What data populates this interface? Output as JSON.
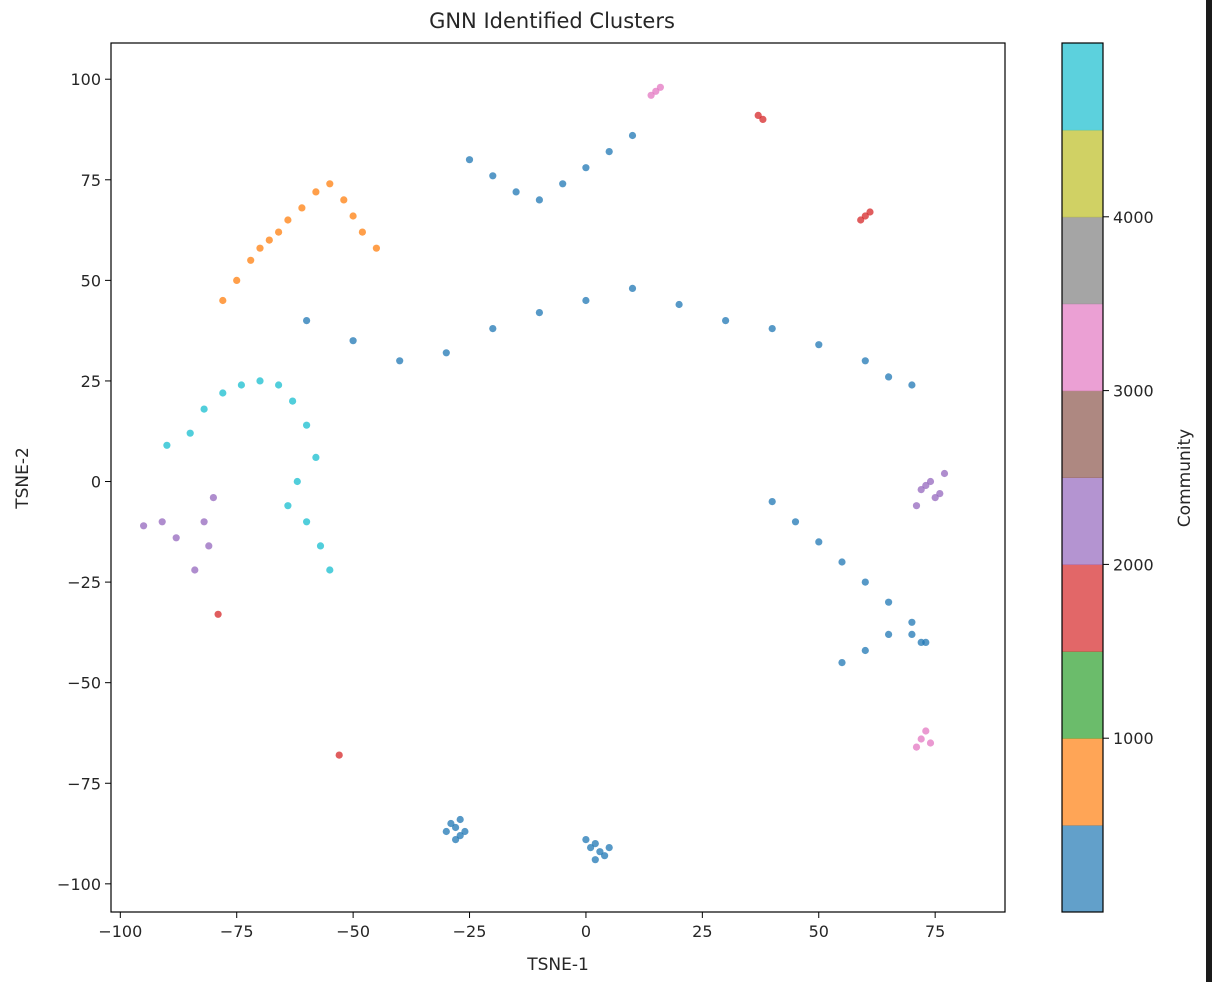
{
  "chart_data": {
    "type": "scatter",
    "title": "GNN Identified Clusters",
    "xlabel": "TSNE-1",
    "ylabel": "TSNE-2",
    "xlim": [
      -102,
      90
    ],
    "ylim": [
      -107,
      109
    ],
    "xticks": [
      -100,
      -75,
      -50,
      -25,
      0,
      25,
      50,
      75
    ],
    "yticks": [
      -100,
      -75,
      -50,
      -25,
      0,
      25,
      50,
      75,
      100
    ],
    "xtick_labels": [
      "−100",
      "−75",
      "−50",
      "−25",
      "0",
      "25",
      "50",
      "75"
    ],
    "ytick_labels": [
      "−100",
      "−75",
      "−50",
      "−25",
      "0",
      "25",
      "50",
      "75",
      "100"
    ],
    "grid": false,
    "colormap": "tab10",
    "colorbar": {
      "label": "Community",
      "range": [
        0,
        5000
      ],
      "ticks": [
        1000,
        2000,
        3000,
        4000
      ],
      "tick_labels": [
        "1000",
        "2000",
        "3000",
        "4000"
      ],
      "colors": [
        "#1f77b4",
        "#ff7f0e",
        "#2ca02c",
        "#d62728",
        "#9467bd",
        "#8c564b",
        "#e377c2",
        "#7f7f7f",
        "#bcbd22",
        "#17becf"
      ]
    },
    "palette": [
      "#1f77b4",
      "#ff7f0e",
      "#2ca02c",
      "#d62728",
      "#9467bd",
      "#e377c2",
      "#17becf",
      "#bcbd22"
    ],
    "series": [
      {
        "x": [
          -90,
          -85,
          -82,
          -78,
          -74,
          -70,
          -66,
          -63,
          -60,
          -58,
          -62,
          -64,
          -60,
          -57,
          -55
        ],
        "y": [
          9,
          12,
          18,
          22,
          24,
          25,
          24,
          20,
          14,
          6,
          0,
          -6,
          -10,
          -16,
          -22
        ],
        "color": "#17becf"
      },
      {
        "x": [
          -78,
          -75,
          -72,
          -70,
          -68,
          -66,
          -64,
          -61,
          -58,
          -55,
          -52,
          -50,
          -48,
          -45
        ],
        "y": [
          45,
          50,
          55,
          58,
          60,
          62,
          65,
          68,
          72,
          74,
          70,
          66,
          62,
          58
        ],
        "color": "#ff7f0e"
      },
      {
        "x": [
          -60,
          -50,
          -40,
          -30,
          -20,
          -10,
          0,
          10,
          20,
          30,
          40,
          50,
          60,
          65,
          70
        ],
        "y": [
          40,
          35,
          30,
          32,
          38,
          42,
          45,
          48,
          44,
          40,
          38,
          34,
          30,
          26,
          24
        ],
        "color": "#1f77b4"
      },
      {
        "x": [
          -25,
          -20,
          -15,
          -10,
          -5,
          0,
          5,
          10
        ],
        "y": [
          80,
          76,
          72,
          70,
          74,
          78,
          82,
          86
        ],
        "color": "#1f77b4"
      },
      {
        "x": [
          72,
          74,
          75,
          73,
          76,
          71,
          77
        ],
        "y": [
          -2,
          0,
          -4,
          -1,
          -3,
          -6,
          2
        ],
        "color": "#9467bd"
      },
      {
        "x": [
          -28,
          -27,
          -29,
          -26,
          -28,
          -30,
          -27
        ],
        "y": [
          -86,
          -88,
          -85,
          -87,
          -89,
          -87,
          -84
        ],
        "color": "#1f77b4"
      },
      {
        "x": [
          2,
          3,
          1,
          4,
          2,
          0,
          5
        ],
        "y": [
          -90,
          -92,
          -91,
          -93,
          -94,
          -89,
          -91
        ],
        "color": "#1f77b4"
      },
      {
        "x": [
          60,
          59,
          61
        ],
        "y": [
          66,
          65,
          67
        ],
        "color": "#d62728"
      },
      {
        "x": [
          38,
          37
        ],
        "y": [
          90,
          91
        ],
        "color": "#d62728"
      },
      {
        "x": [
          -53,
          -79
        ],
        "y": [
          -68,
          -33
        ],
        "color": "#d62728"
      },
      {
        "x": [
          15,
          16,
          14
        ],
        "y": [
          97,
          98,
          96
        ],
        "color": "#e377c2"
      },
      {
        "x": [
          72,
          73,
          74,
          71
        ],
        "y": [
          -64,
          -62,
          -65,
          -66
        ],
        "color": "#e377c2"
      },
      {
        "x": [
          -80,
          -82,
          -81,
          -84
        ],
        "y": [
          -4,
          -10,
          -16,
          -22
        ],
        "color": "#9467bd"
      },
      {
        "x": [
          -95,
          -91,
          -88
        ],
        "y": [
          -11,
          -10,
          -14
        ],
        "color": "#9467bd"
      },
      {
        "x": [
          40,
          45,
          50,
          55,
          60,
          65,
          70,
          72
        ],
        "y": [
          -5,
          -10,
          -15,
          -20,
          -25,
          -30,
          -35,
          -40
        ],
        "color": "#1f77b4"
      },
      {
        "x": [
          55,
          60,
          65,
          70,
          73
        ],
        "y": [
          -45,
          -42,
          -38,
          -38,
          -40
        ],
        "color": "#1f77b4"
      }
    ]
  }
}
